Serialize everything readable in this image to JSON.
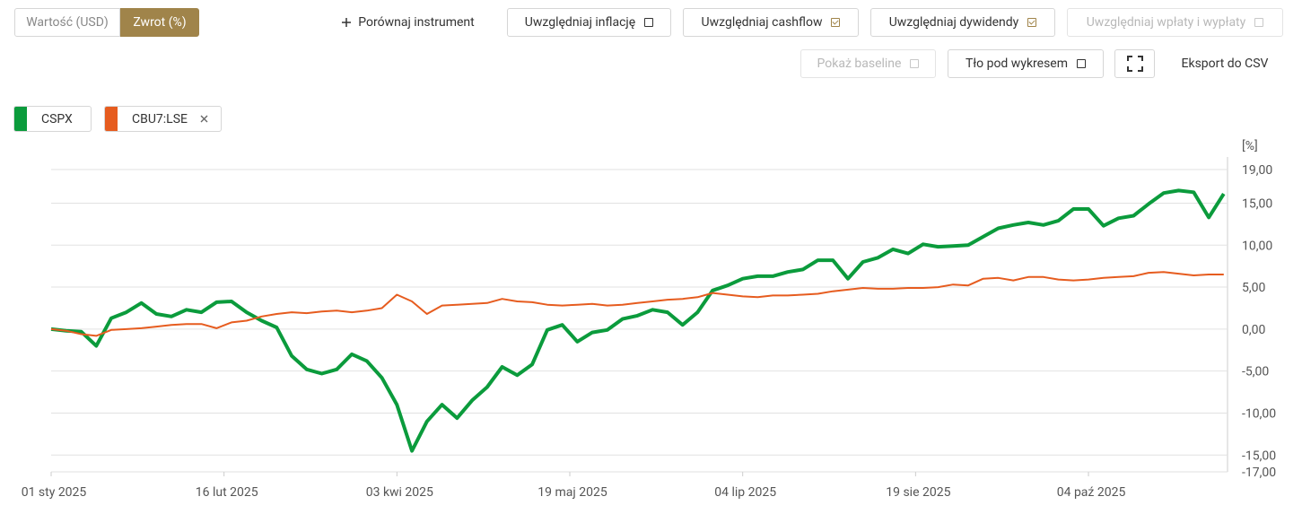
{
  "toolbar": {
    "mode": {
      "options": [
        "Wartość (USD)",
        "Zwrot (%)"
      ],
      "active": 1
    },
    "compare": "Porównaj instrument",
    "toggles": [
      {
        "label": "Uwzględniaj inflację",
        "checked": false,
        "disabled": false
      },
      {
        "label": "Uwzględniaj cashflow",
        "checked": true,
        "disabled": false
      },
      {
        "label": "Uwzględniaj dywidendy",
        "checked": true,
        "disabled": false
      },
      {
        "label": "Uwzględniaj wpłaty i wypłaty",
        "checked": false,
        "disabled": true
      },
      {
        "label": "Pokaż baseline",
        "checked": false,
        "disabled": true
      },
      {
        "label": "Tło pod wykresem",
        "checked": false,
        "disabled": false
      }
    ],
    "export": "Eksport do CSV"
  },
  "chart_data": {
    "type": "line",
    "y_axis_label": "[%]",
    "x": [
      "2025-01-01",
      "2025-01-05",
      "2025-01-09",
      "2025-01-13",
      "2025-01-17",
      "2025-01-21",
      "2025-01-25",
      "2025-01-29",
      "2025-02-02",
      "2025-02-06",
      "2025-02-10",
      "2025-02-14",
      "2025-02-18",
      "2025-02-22",
      "2025-02-26",
      "2025-03-02",
      "2025-03-06",
      "2025-03-10",
      "2025-03-14",
      "2025-03-18",
      "2025-03-22",
      "2025-03-26",
      "2025-03-30",
      "2025-04-03",
      "2025-04-07",
      "2025-04-11",
      "2025-04-15",
      "2025-04-19",
      "2025-04-23",
      "2025-04-27",
      "2025-05-01",
      "2025-05-05",
      "2025-05-09",
      "2025-05-13",
      "2025-05-17",
      "2025-05-21",
      "2025-05-25",
      "2025-05-29",
      "2025-06-02",
      "2025-06-06",
      "2025-06-10",
      "2025-06-14",
      "2025-06-18",
      "2025-06-22",
      "2025-06-26",
      "2025-06-30",
      "2025-07-04",
      "2025-07-08",
      "2025-07-12",
      "2025-07-16",
      "2025-07-20",
      "2025-07-24",
      "2025-07-28",
      "2025-08-01",
      "2025-08-05",
      "2025-08-09",
      "2025-08-13",
      "2025-08-17",
      "2025-08-21",
      "2025-08-25",
      "2025-08-29",
      "2025-09-02",
      "2025-09-06",
      "2025-09-10",
      "2025-09-14",
      "2025-09-18",
      "2025-09-22",
      "2025-09-26",
      "2025-09-30",
      "2025-10-04",
      "2025-10-08",
      "2025-10-12",
      "2025-10-16",
      "2025-10-20",
      "2025-10-24",
      "2025-10-28",
      "2025-11-01",
      "2025-11-05",
      "2025-11-09"
    ],
    "series": [
      {
        "name": "CSPX",
        "color": "#0b9b3c",
        "width": 4,
        "removable": false,
        "values": [
          0,
          -0.2,
          -0.3,
          -2.0,
          1.3,
          2.0,
          3.1,
          1.8,
          1.5,
          2.3,
          2.0,
          3.2,
          3.3,
          2.0,
          1.0,
          0.2,
          -3.2,
          -4.8,
          -5.3,
          -4.8,
          -3.0,
          -3.8,
          -5.8,
          -9.0,
          -14.5,
          -11.0,
          -9.0,
          -10.6,
          -8.5,
          -6.9,
          -4.5,
          -5.5,
          -4.2,
          -0.1,
          0.5,
          -1.5,
          -0.4,
          -0.1,
          1.2,
          1.6,
          2.3,
          2.0,
          0.5,
          2.0,
          4.6,
          5.2,
          6.0,
          6.3,
          6.3,
          6.8,
          7.1,
          8.2,
          8.2,
          6.0,
          8.0,
          8.5,
          9.5,
          9.0,
          10.1,
          9.8,
          9.9,
          10.0,
          11.0,
          12.0,
          12.4,
          12.7,
          12.4,
          12.9,
          14.3,
          14.3,
          12.3,
          13.2,
          13.5,
          14.9,
          16.2,
          16.5,
          16.3,
          13.3,
          16.1
        ]
      },
      {
        "name": "CBU7:LSE",
        "color": "#e65c1f",
        "width": 2,
        "removable": true,
        "values": [
          0,
          -0.2,
          -0.6,
          -0.8,
          -0.1,
          0.0,
          0.1,
          0.3,
          0.5,
          0.6,
          0.6,
          0.1,
          0.8,
          1.0,
          1.5,
          1.8,
          2.0,
          1.9,
          2.1,
          2.2,
          2.0,
          2.2,
          2.5,
          4.1,
          3.3,
          1.8,
          2.8,
          2.9,
          3.0,
          3.1,
          3.6,
          3.3,
          3.2,
          2.9,
          2.8,
          2.9,
          3.0,
          2.8,
          2.9,
          3.1,
          3.3,
          3.5,
          3.6,
          3.8,
          4.3,
          4.1,
          3.9,
          3.8,
          4.0,
          4.0,
          4.1,
          4.2,
          4.5,
          4.7,
          4.9,
          4.8,
          4.8,
          4.9,
          4.9,
          5.0,
          5.3,
          5.2,
          6.0,
          6.1,
          5.8,
          6.2,
          6.2,
          5.9,
          5.8,
          5.9,
          6.1,
          6.2,
          6.3,
          6.7,
          6.8,
          6.6,
          6.4,
          6.5,
          6.5
        ]
      }
    ],
    "xlim": [
      "2025-01-01",
      "2025-11-10"
    ],
    "xticks": [
      {
        "value": "2025-01-01",
        "label": "01 sty 2025"
      },
      {
        "value": "2025-02-16",
        "label": "16 lut 2025"
      },
      {
        "value": "2025-04-03",
        "label": "03 kwi 2025"
      },
      {
        "value": "2025-05-19",
        "label": "19 maj 2025"
      },
      {
        "value": "2025-07-04",
        "label": "04 lip 2025"
      },
      {
        "value": "2025-08-19",
        "label": "19 sie 2025"
      },
      {
        "value": "2025-10-04",
        "label": "04 paź 2025"
      }
    ],
    "ylim": [
      -17,
      19
    ],
    "yticks": [
      {
        "value": 19,
        "label": "19,00"
      },
      {
        "value": 15,
        "label": "15,00"
      },
      {
        "value": 10,
        "label": "10,00"
      },
      {
        "value": 5,
        "label": "5,00"
      },
      {
        "value": 0,
        "label": "0,00"
      },
      {
        "value": -5,
        "label": "-5,00"
      },
      {
        "value": -10,
        "label": "-10,00"
      },
      {
        "value": -15,
        "label": "-15,00"
      },
      {
        "value": -17,
        "label": "-17,00"
      }
    ],
    "grid": true
  }
}
